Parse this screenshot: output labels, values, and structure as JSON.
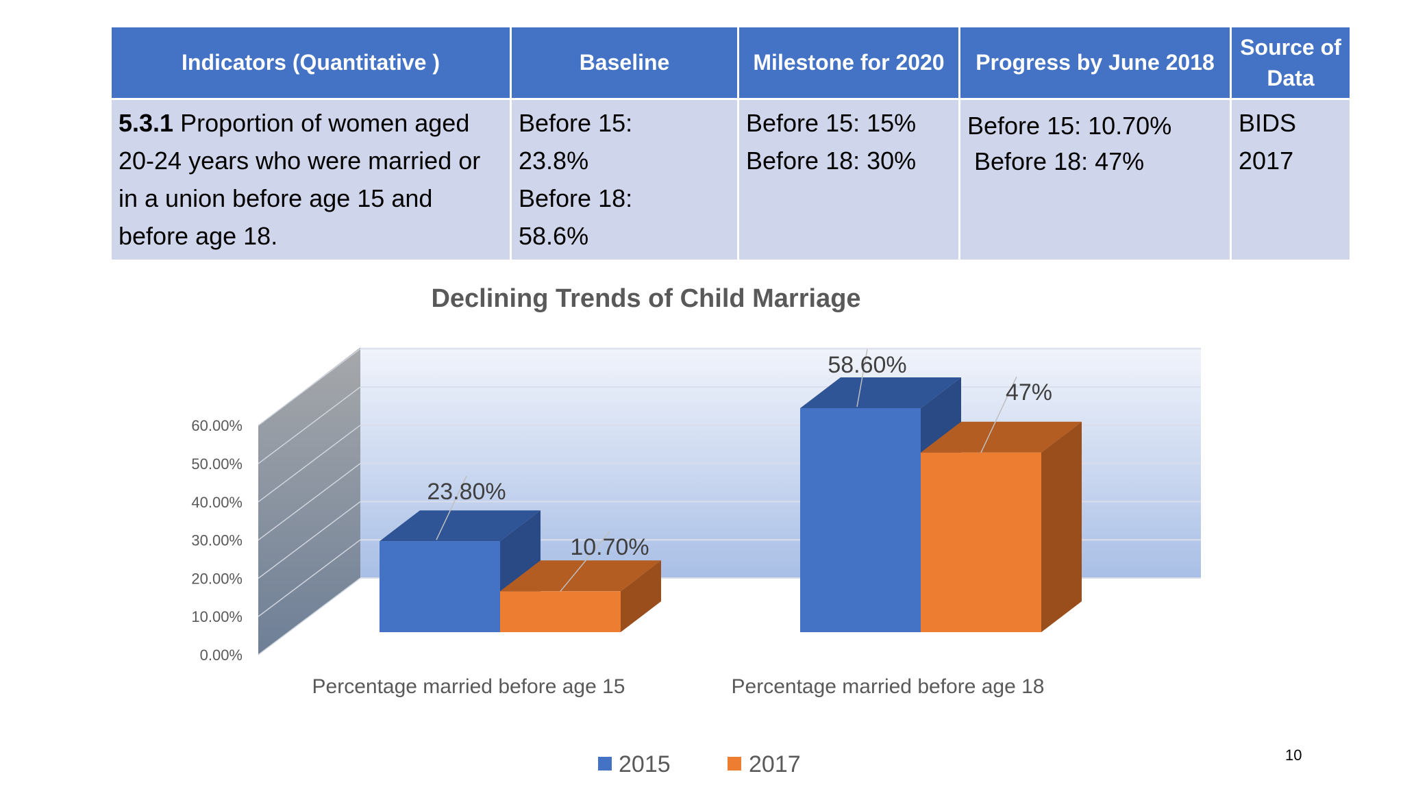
{
  "table": {
    "headers": [
      "Indicators (Quantitative )",
      "Baseline",
      "Milestone for 2020",
      "Progress by June 2018",
      "Source of Data"
    ],
    "row": {
      "indicator_code": "5.3.1",
      "indicator_text": " Proportion of women aged 20-24 years who were married or in a union before age 15 and before age 18.",
      "baseline": [
        "Before 15:",
        "23.8%",
        "Before 18:",
        "58.6%"
      ],
      "milestone": [
        "Before 15: 15%",
        "Before 18: 30%"
      ],
      "progress": [
        "Before 15: 10.70%",
        "Before 18: 47%"
      ],
      "source": "BIDS 2017"
    }
  },
  "chart_data": {
    "type": "bar",
    "style": "3d-clustered-column",
    "title": "Declining Trends of Child Marriage",
    "categories": [
      "Percentage married before age 15",
      "Percentage married before age 18"
    ],
    "series": [
      {
        "name": "2015",
        "values": [
          23.8,
          58.6
        ],
        "labels": [
          "23.80%",
          "58.60%"
        ],
        "color": "#4472c4"
      },
      {
        "name": "2017",
        "values": [
          10.7,
          47
        ],
        "labels": [
          "10.70%",
          "47%"
        ],
        "color": "#ed7d31"
      }
    ],
    "yticks": [
      "0.00%",
      "10.00%",
      "20.00%",
      "30.00%",
      "40.00%",
      "50.00%",
      "60.00%"
    ],
    "ylim": [
      0,
      60
    ],
    "grid": true,
    "legend": "bottom"
  },
  "page_number": "10"
}
